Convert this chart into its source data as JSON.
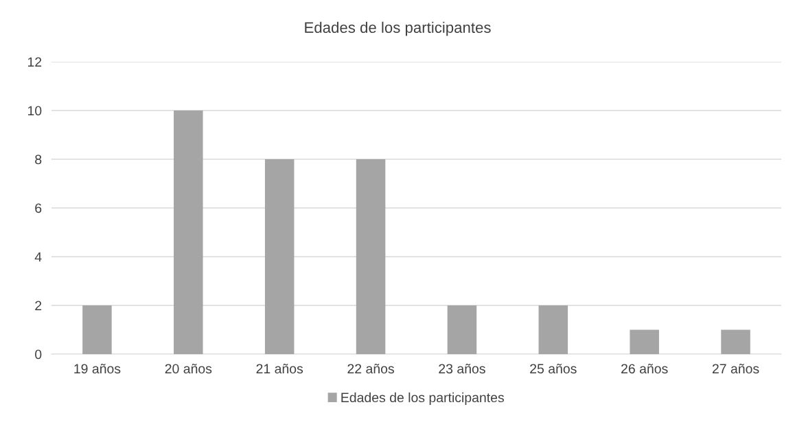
{
  "chart_data": {
    "type": "bar",
    "title": "Edades de los participantes",
    "categories": [
      "19 años",
      "20 años",
      "21 años",
      "22 años",
      "23 años",
      "25 años",
      "26 años",
      "27 años"
    ],
    "series": [
      {
        "name": "Edades de los participantes",
        "color": "#a5a5a5",
        "values": [
          2,
          10,
          8,
          8,
          2,
          2,
          1,
          1
        ]
      }
    ],
    "ylim": [
      0,
      12
    ],
    "yticks": [
      0,
      2,
      4,
      6,
      8,
      10,
      12
    ],
    "grid": "y",
    "legend": "bottom"
  }
}
